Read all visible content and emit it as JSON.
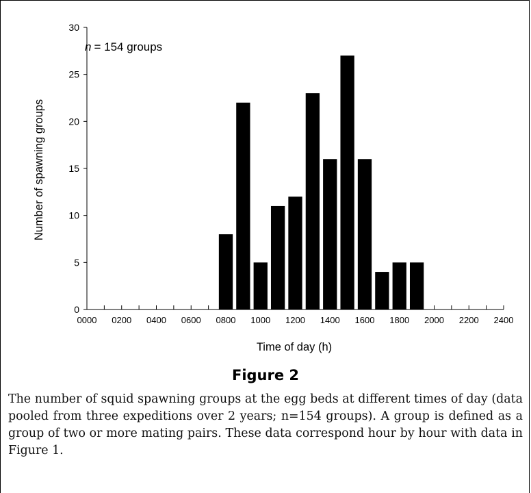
{
  "chart_data": {
    "type": "bar",
    "x": [
      800,
      900,
      1000,
      1100,
      1200,
      1300,
      1400,
      1500,
      1600,
      1700,
      1800,
      1900
    ],
    "values": [
      8,
      22,
      5,
      11,
      12,
      23,
      16,
      27,
      16,
      4,
      5,
      5
    ],
    "xlabel": "Time of day (h)",
    "ylabel": "Number of spawning groups",
    "xlim": [
      0,
      2400
    ],
    "ylim": [
      0,
      30
    ],
    "xticks": [
      "0000",
      "0200",
      "0400",
      "0600",
      "0800",
      "1000",
      "1200",
      "1400",
      "1600",
      "1800",
      "2000",
      "2200",
      "2400"
    ],
    "yticks": [
      0,
      5,
      10,
      15,
      20,
      25,
      30
    ],
    "annotation": "= 154 groups",
    "annotation_var": "n",
    "bar_color": "#000000",
    "grid": false,
    "legend": "none"
  },
  "figure": {
    "title": "Figure 2",
    "caption": "The number of squid spawning groups at the egg beds at different times of day (data pooled from three expeditions over 2 years; n=154 groups). A group is defined as a group of two or more mating pairs. These data correspond hour by hour with data in Figure 1."
  }
}
